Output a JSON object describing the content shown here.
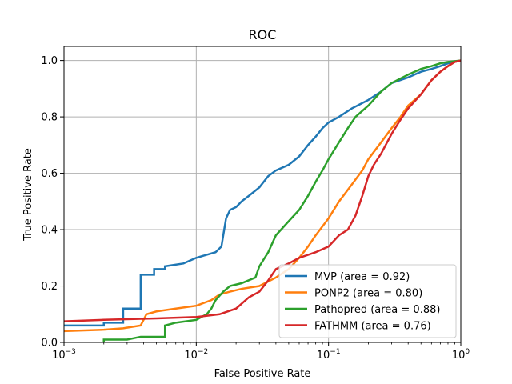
{
  "chart_data": {
    "type": "line",
    "title": "ROC",
    "xlabel": "False Positive Rate",
    "ylabel": "True Positive Rate",
    "xscale": "log",
    "xlim": [
      0.001,
      1
    ],
    "ylim": [
      0,
      1.05
    ],
    "x_ticks": [
      {
        "value": 0.001,
        "base": "10",
        "exp": "−3"
      },
      {
        "value": 0.01,
        "base": "10",
        "exp": "−2"
      },
      {
        "value": 0.1,
        "base": "10",
        "exp": "−1"
      },
      {
        "value": 1,
        "base": "10",
        "exp": "0"
      }
    ],
    "y_ticks": [
      "0.0",
      "0.2",
      "0.4",
      "0.6",
      "0.8",
      "1.0"
    ],
    "grid": true,
    "legend_position": "lower-right",
    "series": [
      {
        "name": "MVP (area = 0.92)",
        "color": "#1f77b4",
        "points": [
          [
            0.001,
            0.06
          ],
          [
            0.002,
            0.06
          ],
          [
            0.002,
            0.07
          ],
          [
            0.0028,
            0.07
          ],
          [
            0.0028,
            0.12
          ],
          [
            0.0038,
            0.12
          ],
          [
            0.0038,
            0.24
          ],
          [
            0.0048,
            0.24
          ],
          [
            0.0048,
            0.26
          ],
          [
            0.0058,
            0.26
          ],
          [
            0.0058,
            0.27
          ],
          [
            0.008,
            0.28
          ],
          [
            0.01,
            0.3
          ],
          [
            0.014,
            0.32
          ],
          [
            0.0155,
            0.34
          ],
          [
            0.016,
            0.38
          ],
          [
            0.0168,
            0.44
          ],
          [
            0.018,
            0.47
          ],
          [
            0.02,
            0.48
          ],
          [
            0.022,
            0.5
          ],
          [
            0.025,
            0.52
          ],
          [
            0.03,
            0.55
          ],
          [
            0.035,
            0.59
          ],
          [
            0.04,
            0.61
          ],
          [
            0.05,
            0.63
          ],
          [
            0.06,
            0.66
          ],
          [
            0.07,
            0.7
          ],
          [
            0.08,
            0.73
          ],
          [
            0.09,
            0.76
          ],
          [
            0.1,
            0.78
          ],
          [
            0.12,
            0.8
          ],
          [
            0.15,
            0.83
          ],
          [
            0.2,
            0.86
          ],
          [
            0.25,
            0.89
          ],
          [
            0.3,
            0.92
          ],
          [
            0.4,
            0.94
          ],
          [
            0.5,
            0.96
          ],
          [
            0.6,
            0.97
          ],
          [
            0.7,
            0.98
          ],
          [
            0.8,
            0.99
          ],
          [
            0.9,
            0.995
          ],
          [
            1.0,
            1.0
          ]
        ]
      },
      {
        "name": "PONP2 (area = 0.80)",
        "color": "#ff7f0e",
        "points": [
          [
            0.001,
            0.04
          ],
          [
            0.002,
            0.045
          ],
          [
            0.0028,
            0.05
          ],
          [
            0.0038,
            0.06
          ],
          [
            0.0042,
            0.1
          ],
          [
            0.005,
            0.11
          ],
          [
            0.007,
            0.12
          ],
          [
            0.01,
            0.13
          ],
          [
            0.013,
            0.15
          ],
          [
            0.015,
            0.17
          ],
          [
            0.018,
            0.18
          ],
          [
            0.022,
            0.19
          ],
          [
            0.03,
            0.2
          ],
          [
            0.04,
            0.23
          ],
          [
            0.05,
            0.26
          ],
          [
            0.06,
            0.3
          ],
          [
            0.07,
            0.34
          ],
          [
            0.08,
            0.38
          ],
          [
            0.1,
            0.44
          ],
          [
            0.12,
            0.5
          ],
          [
            0.15,
            0.56
          ],
          [
            0.18,
            0.61
          ],
          [
            0.2,
            0.65
          ],
          [
            0.25,
            0.71
          ],
          [
            0.3,
            0.76
          ],
          [
            0.35,
            0.8
          ],
          [
            0.4,
            0.84
          ],
          [
            0.5,
            0.88
          ],
          [
            0.6,
            0.93
          ],
          [
            0.7,
            0.96
          ],
          [
            0.8,
            0.98
          ],
          [
            0.9,
            0.995
          ],
          [
            1.0,
            1.0
          ]
        ]
      },
      {
        "name": "Pathopred (area = 0.88)",
        "color": "#2ca02c",
        "points": [
          [
            0.002,
            0.0
          ],
          [
            0.002,
            0.01
          ],
          [
            0.003,
            0.01
          ],
          [
            0.0038,
            0.02
          ],
          [
            0.0058,
            0.02
          ],
          [
            0.0058,
            0.06
          ],
          [
            0.007,
            0.07
          ],
          [
            0.01,
            0.08
          ],
          [
            0.012,
            0.1
          ],
          [
            0.013,
            0.12
          ],
          [
            0.014,
            0.15
          ],
          [
            0.016,
            0.18
          ],
          [
            0.018,
            0.2
          ],
          [
            0.022,
            0.21
          ],
          [
            0.028,
            0.23
          ],
          [
            0.03,
            0.27
          ],
          [
            0.035,
            0.32
          ],
          [
            0.04,
            0.38
          ],
          [
            0.05,
            0.43
          ],
          [
            0.06,
            0.47
          ],
          [
            0.07,
            0.52
          ],
          [
            0.08,
            0.57
          ],
          [
            0.09,
            0.61
          ],
          [
            0.1,
            0.65
          ],
          [
            0.12,
            0.71
          ],
          [
            0.14,
            0.76
          ],
          [
            0.16,
            0.8
          ],
          [
            0.2,
            0.84
          ],
          [
            0.25,
            0.89
          ],
          [
            0.3,
            0.92
          ],
          [
            0.4,
            0.95
          ],
          [
            0.5,
            0.97
          ],
          [
            0.6,
            0.98
          ],
          [
            0.7,
            0.99
          ],
          [
            0.8,
            0.995
          ],
          [
            1.0,
            1.0
          ]
        ]
      },
      {
        "name": "FATHMM (area = 0.76)",
        "color": "#d62728",
        "points": [
          [
            0.001,
            0.075
          ],
          [
            0.002,
            0.08
          ],
          [
            0.005,
            0.085
          ],
          [
            0.01,
            0.09
          ],
          [
            0.015,
            0.1
          ],
          [
            0.02,
            0.12
          ],
          [
            0.025,
            0.16
          ],
          [
            0.03,
            0.18
          ],
          [
            0.035,
            0.22
          ],
          [
            0.04,
            0.26
          ],
          [
            0.05,
            0.28
          ],
          [
            0.06,
            0.3
          ],
          [
            0.08,
            0.32
          ],
          [
            0.1,
            0.34
          ],
          [
            0.12,
            0.38
          ],
          [
            0.14,
            0.4
          ],
          [
            0.16,
            0.45
          ],
          [
            0.18,
            0.52
          ],
          [
            0.2,
            0.59
          ],
          [
            0.22,
            0.63
          ],
          [
            0.25,
            0.67
          ],
          [
            0.3,
            0.74
          ],
          [
            0.35,
            0.79
          ],
          [
            0.4,
            0.83
          ],
          [
            0.5,
            0.88
          ],
          [
            0.6,
            0.93
          ],
          [
            0.7,
            0.96
          ],
          [
            0.8,
            0.98
          ],
          [
            0.9,
            0.995
          ],
          [
            1.0,
            1.0
          ]
        ]
      }
    ]
  }
}
